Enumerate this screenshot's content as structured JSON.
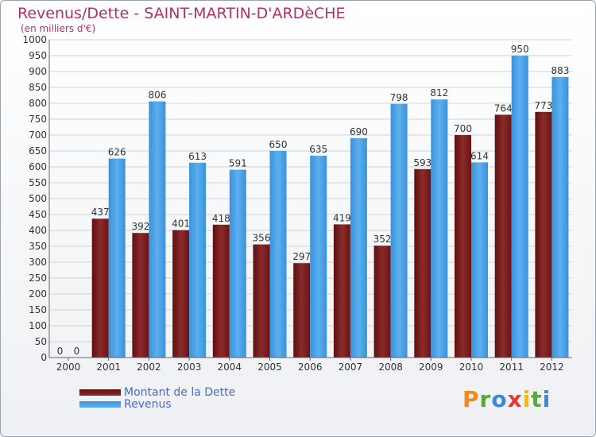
{
  "title": "Revenus/Dette - SAINT-MARTIN-D'ARDèCHE",
  "subtitle": "(en milliers d'€)",
  "logo": "Proxiti",
  "colors": {
    "debt": "#7a1b1b",
    "revenue": "#3f9ae0",
    "title": "#b0306a"
  },
  "chart_data": {
    "type": "bar",
    "categories": [
      "2000",
      "2001",
      "2002",
      "2003",
      "2004",
      "2005",
      "2006",
      "2007",
      "2008",
      "2009",
      "2010",
      "2011",
      "2012"
    ],
    "series": [
      {
        "name": "Montant de la Dette",
        "values": [
          0,
          437,
          392,
          401,
          418,
          356,
          297,
          419,
          352,
          593,
          700,
          764,
          773
        ]
      },
      {
        "name": "Revenus",
        "values": [
          0,
          626,
          806,
          613,
          591,
          650,
          635,
          690,
          798,
          812,
          614,
          950,
          883
        ]
      }
    ],
    "ylim": [
      0,
      1000
    ],
    "yticks": [
      0,
      50,
      100,
      150,
      200,
      250,
      300,
      350,
      400,
      450,
      500,
      550,
      600,
      650,
      700,
      750,
      800,
      850,
      900,
      950,
      1000
    ],
    "grid": true,
    "legend": "bottom-left"
  }
}
